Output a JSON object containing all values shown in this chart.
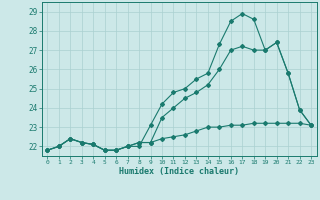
{
  "x": [
    0,
    1,
    2,
    3,
    4,
    5,
    6,
    7,
    8,
    9,
    10,
    11,
    12,
    13,
    14,
    15,
    16,
    17,
    18,
    19,
    20,
    21,
    22,
    23
  ],
  "line1": [
    21.8,
    22.0,
    22.4,
    22.2,
    22.1,
    21.8,
    21.8,
    22.0,
    22.0,
    23.1,
    24.2,
    24.8,
    25.0,
    25.5,
    25.8,
    27.3,
    28.5,
    28.9,
    28.6,
    27.0,
    27.4,
    25.8,
    23.9,
    23.1
  ],
  "line2": [
    21.8,
    22.0,
    22.4,
    22.2,
    22.1,
    21.8,
    21.8,
    22.0,
    22.2,
    22.2,
    23.5,
    24.0,
    24.5,
    24.8,
    25.2,
    26.0,
    27.0,
    27.2,
    27.0,
    27.0,
    27.4,
    25.8,
    23.9,
    23.1
  ],
  "line3": [
    21.8,
    22.0,
    22.4,
    22.2,
    22.1,
    21.8,
    21.8,
    22.0,
    22.2,
    22.2,
    22.4,
    22.5,
    22.6,
    22.8,
    23.0,
    23.0,
    23.1,
    23.1,
    23.2,
    23.2,
    23.2,
    23.2,
    23.2,
    23.1
  ],
  "line_color": "#1a7a6e",
  "bg_color": "#cce8e8",
  "grid_color": "#aad0d0",
  "xlabel": "Humidex (Indice chaleur)",
  "ylim": [
    21.5,
    29.5
  ],
  "xlim": [
    -0.5,
    23.5
  ],
  "yticks": [
    22,
    23,
    24,
    25,
    26,
    27,
    28,
    29
  ],
  "xticks": [
    0,
    1,
    2,
    3,
    4,
    5,
    6,
    7,
    8,
    9,
    10,
    11,
    12,
    13,
    14,
    15,
    16,
    17,
    18,
    19,
    20,
    21,
    22,
    23
  ],
  "xtick_labels": [
    "0",
    "1",
    "2",
    "3",
    "4",
    "5",
    "6",
    "7",
    "8",
    "9",
    "10",
    "11",
    "12",
    "13",
    "14",
    "15",
    "16",
    "17",
    "18",
    "19",
    "20",
    "21",
    "22",
    "23"
  ]
}
